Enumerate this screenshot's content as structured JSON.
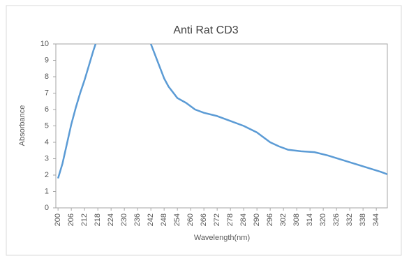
{
  "chart_data": {
    "type": "line",
    "title": "Anti Rat CD3",
    "x_label": "Wavelength(nm)",
    "y_label": "Absorbance",
    "x": [
      200,
      202,
      204,
      206,
      208,
      210,
      212,
      214,
      216,
      217,
      230,
      242,
      244,
      246,
      248,
      250,
      254,
      258,
      262,
      266,
      272,
      278,
      284,
      290,
      296,
      300,
      304,
      310,
      316,
      322,
      328,
      334,
      340,
      346,
      349
    ],
    "series": [
      {
        "name": "Anti Rat CD3",
        "color": "#5b9bd5",
        "values": [
          1.8,
          2.7,
          3.9,
          5.1,
          6.1,
          7.0,
          7.8,
          8.7,
          9.6,
          10.0,
          null,
          10.0,
          9.3,
          8.6,
          7.9,
          7.4,
          6.7,
          6.4,
          6.0,
          5.8,
          5.6,
          5.3,
          5.0,
          4.6,
          4.0,
          3.75,
          3.55,
          3.45,
          3.4,
          3.2,
          2.95,
          2.7,
          2.45,
          2.2,
          2.05
        ]
      }
    ],
    "xlim": [
      199,
      349
    ],
    "xticks": [
      200,
      206,
      212,
      218,
      224,
      230,
      236,
      242,
      248,
      254,
      260,
      266,
      272,
      278,
      284,
      290,
      296,
      302,
      308,
      314,
      320,
      326,
      332,
      338,
      344
    ],
    "ylim": [
      0,
      10
    ],
    "yticks": [
      0,
      1,
      2,
      3,
      4,
      5,
      6,
      7,
      8,
      9,
      10
    ],
    "grid": false
  }
}
